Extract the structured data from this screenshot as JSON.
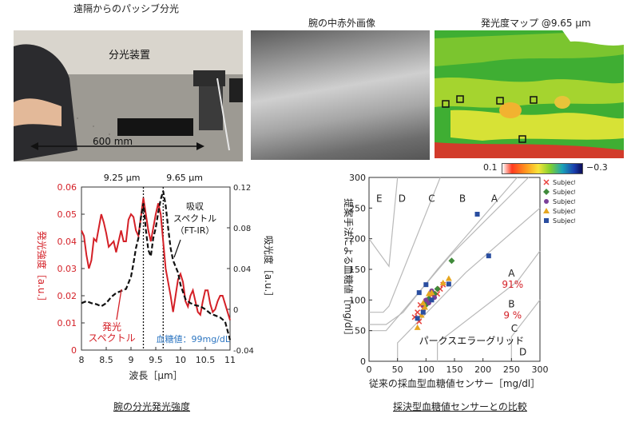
{
  "panels": {
    "top_left": {
      "title": "遠隔からのパッシブ分光",
      "device_label": "分光装置",
      "distance_label": "600 mm"
    },
    "top_middle": {
      "title": "腕の中赤外画像"
    },
    "top_right": {
      "title": "発光度マップ @9.65 μm",
      "colorbar_min": "0.1",
      "colorbar_max": "−0.3"
    }
  },
  "captions": {
    "bottom_left": "腕の分光発光強度",
    "bottom_right": "採決型血糖値センサーとの比較"
  },
  "colors": {
    "emission_red": "#d42027",
    "absorb_black": "#111111",
    "glucose_blue": "#2f77c2"
  },
  "chart_data": [
    {
      "type": "line",
      "title": "",
      "xlabel": "波長［μm］",
      "ylabel_left": "発光強度［a.u.］",
      "ylabel_right": "吸光度［a.u.］",
      "xlim": [
        8,
        11
      ],
      "ylim_left": [
        0,
        0.06
      ],
      "ylim_right": [
        -0.04,
        0.12
      ],
      "xticks": [
        "8",
        "8.5",
        "9",
        "9.5",
        "10",
        "10.5",
        "11"
      ],
      "yticks_left": [
        "0",
        "0.01",
        "0.02",
        "0.03",
        "0.04",
        "0.05",
        "0.06"
      ],
      "yticks_right": [
        "-0.04",
        "0",
        "0.04",
        "0.08",
        "0.12"
      ],
      "vlines": [
        {
          "x": 9.25,
          "label": "9.25 μm"
        },
        {
          "x": 9.65,
          "label": "9.65 μm"
        }
      ],
      "series": [
        {
          "name": "発光スペクトル",
          "axis": "left",
          "x": [
            8.0,
            8.05,
            8.1,
            8.15,
            8.2,
            8.25,
            8.3,
            8.35,
            8.4,
            8.45,
            8.5,
            8.55,
            8.6,
            8.65,
            8.7,
            8.75,
            8.8,
            8.85,
            8.9,
            8.95,
            9.0,
            9.05,
            9.1,
            9.15,
            9.2,
            9.25,
            9.3,
            9.35,
            9.4,
            9.45,
            9.5,
            9.55,
            9.6,
            9.65,
            9.7,
            9.75,
            9.8,
            9.85,
            9.9,
            9.95,
            10.0,
            10.05,
            10.1,
            10.15,
            10.2,
            10.25,
            10.3,
            10.35,
            10.4,
            10.45,
            10.5,
            10.55,
            10.6,
            10.65,
            10.7,
            10.75,
            10.8,
            10.85,
            10.9,
            10.95,
            11.0
          ],
          "y": [
            0.044,
            0.042,
            0.035,
            0.03,
            0.033,
            0.041,
            0.04,
            0.045,
            0.05,
            0.047,
            0.043,
            0.038,
            0.039,
            0.04,
            0.036,
            0.04,
            0.044,
            0.04,
            0.04,
            0.048,
            0.05,
            0.049,
            0.044,
            0.042,
            0.049,
            0.056,
            0.05,
            0.044,
            0.04,
            0.045,
            0.05,
            0.054,
            0.05,
            0.04,
            0.03,
            0.025,
            0.02,
            0.014,
            0.02,
            0.026,
            0.028,
            0.025,
            0.018,
            0.016,
            0.02,
            0.022,
            0.018,
            0.014,
            0.013,
            0.018,
            0.022,
            0.022,
            0.017,
            0.014,
            0.015,
            0.018,
            0.02,
            0.02,
            0.017,
            0.014,
            0.011
          ]
        },
        {
          "name": "吸収スペクトル（FT-IR）",
          "axis": "right",
          "x": [
            8.0,
            8.1,
            8.2,
            8.3,
            8.4,
            8.5,
            8.6,
            8.7,
            8.8,
            8.9,
            9.0,
            9.05,
            9.1,
            9.15,
            9.2,
            9.25,
            9.3,
            9.35,
            9.4,
            9.45,
            9.5,
            9.55,
            9.6,
            9.65,
            9.7,
            9.75,
            9.8,
            9.85,
            9.9,
            9.95,
            10.0,
            10.1,
            10.2,
            10.3,
            10.4,
            10.5,
            10.6,
            10.7,
            10.8,
            10.9,
            11.0
          ],
          "y": [
            0.006,
            0.008,
            0.006,
            0.005,
            0.003,
            0.006,
            0.012,
            0.016,
            0.018,
            0.02,
            0.032,
            0.045,
            0.06,
            0.07,
            0.09,
            0.104,
            0.078,
            0.058,
            0.052,
            0.07,
            0.08,
            0.095,
            0.108,
            0.116,
            0.102,
            0.08,
            0.06,
            0.048,
            0.042,
            0.036,
            0.024,
            0.01,
            0.006,
            0.004,
            0.003,
            0.0,
            -0.004,
            -0.006,
            -0.008,
            -0.012,
            -0.03
          ]
        }
      ],
      "annotations": {
        "emission_label": [
          "発光",
          "スペクトル"
        ],
        "absorb_label": [
          "吸収",
          "スペクトル",
          "（FT-IR）"
        ],
        "glucose_label": "血糖値：99mg/dL"
      }
    },
    {
      "type": "scatter",
      "title": "",
      "xlabel": "従来の採血型血糖値センサー［mg/dl］",
      "ylabel": "提案手法による血糖値［mg/dl］",
      "xlim": [
        0,
        300
      ],
      "ylim": [
        0,
        300
      ],
      "xticks": [
        "0",
        "50",
        "100",
        "150",
        "200",
        "250",
        "300"
      ],
      "yticks": [
        "0",
        "50",
        "100",
        "150",
        "200",
        "250",
        "300"
      ],
      "zone_labels": [
        "A",
        "B",
        "C",
        "D",
        "E"
      ],
      "zone_A_pct": "91%",
      "zone_B_pct": "9 %",
      "grid_title": "パークスエラーグリッド",
      "series": [
        {
          "name": "Subject A",
          "color": "#e8433d",
          "marker": "x",
          "points": [
            [
              80,
              72
            ],
            [
              85,
              80
            ],
            [
              90,
              92
            ],
            [
              95,
              86
            ],
            [
              100,
              98
            ],
            [
              105,
              100
            ],
            [
              110,
              108
            ],
            [
              120,
              110
            ],
            [
              125,
              118
            ],
            [
              130,
              125
            ],
            [
              88,
              65
            ]
          ]
        },
        {
          "name": "Subject B",
          "color": "#3f8a3a",
          "marker": "diamond",
          "points": [
            [
              100,
              98
            ],
            [
              105,
              102
            ],
            [
              115,
              110
            ],
            [
              145,
              164
            ],
            [
              120,
              118
            ],
            [
              100,
              92
            ]
          ]
        },
        {
          "name": "Subject C",
          "color": "#7b3f98",
          "marker": "circle",
          "points": [
            [
              95,
              92
            ],
            [
              100,
              100
            ],
            [
              105,
              95
            ],
            [
              115,
              104
            ],
            [
              110,
              115
            ]
          ]
        },
        {
          "name": "Subject D",
          "color": "#e6a620",
          "marker": "triangle",
          "points": [
            [
              85,
              55
            ],
            [
              92,
              75
            ],
            [
              98,
              88
            ],
            [
              105,
              110
            ],
            [
              110,
              112
            ],
            [
              130,
              128
            ],
            [
              140,
              135
            ],
            [
              95,
              95
            ]
          ]
        },
        {
          "name": "Subject E",
          "color": "#2a4ea0",
          "marker": "square",
          "points": [
            [
              190,
              240
            ],
            [
              210,
              172
            ],
            [
              100,
              125
            ],
            [
              85,
              70
            ],
            [
              95,
              80
            ],
            [
              110,
              100
            ],
            [
              140,
              126
            ],
            [
              88,
              112
            ]
          ]
        }
      ]
    }
  ]
}
